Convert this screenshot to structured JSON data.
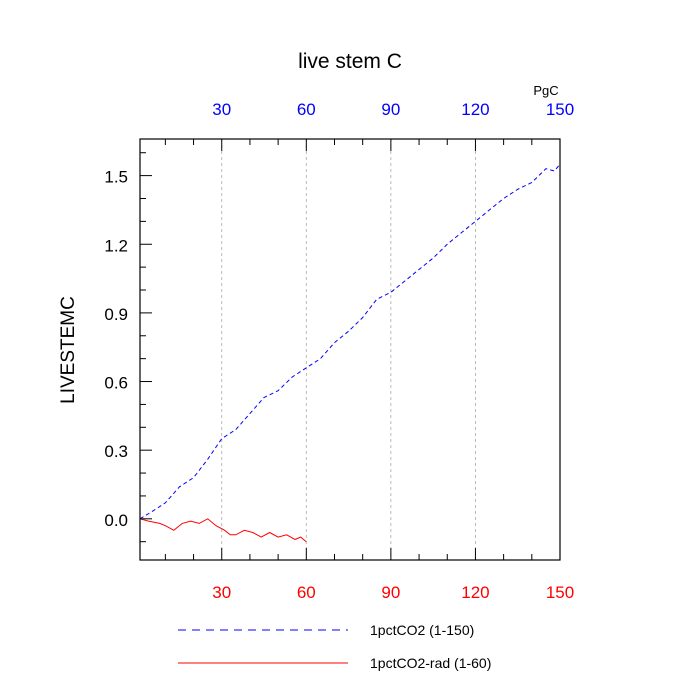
{
  "chart_data": {
    "type": "line",
    "title": "live stem C",
    "ylabel": "LIVESTEMC",
    "units_label": "PgC",
    "xlim": [
      1,
      150
    ],
    "ylim": [
      -0.18,
      1.66
    ],
    "x_ticks_bottom": [
      30,
      60,
      90,
      120,
      150
    ],
    "x_ticks_top": [
      30,
      60,
      90,
      120,
      150
    ],
    "y_ticks": [
      0.0,
      0.3,
      0.6,
      0.9,
      1.2,
      1.5
    ],
    "y_tick_labels": [
      "0.0",
      "0.3",
      "0.6",
      "0.9",
      "1.2",
      "1.5"
    ],
    "x_tick_labels_bottom": [
      "30",
      "60",
      "90",
      "120",
      "150"
    ],
    "x_tick_labels_top": [
      "30",
      "60",
      "90",
      "120",
      "150"
    ],
    "grid": "vertical dashed at x ticks",
    "legend_placement": "bottom",
    "colors": {
      "series1": "#0000ff",
      "series2": "#ff0000",
      "top_ticks": "#0000ff",
      "bottom_ticks": "#ff0000",
      "grid": "#aaaaaa"
    },
    "series": [
      {
        "name": "1pctCO2 (1-150)",
        "style": "dashed",
        "x": [
          1,
          5,
          10,
          15,
          20,
          25,
          30,
          35,
          40,
          45,
          50,
          55,
          60,
          65,
          70,
          75,
          80,
          85,
          90,
          95,
          100,
          105,
          110,
          115,
          120,
          125,
          130,
          135,
          140,
          145,
          148,
          150
        ],
        "y": [
          0.0,
          0.03,
          0.07,
          0.14,
          0.18,
          0.26,
          0.35,
          0.39,
          0.46,
          0.53,
          0.56,
          0.62,
          0.66,
          0.7,
          0.77,
          0.82,
          0.88,
          0.96,
          0.99,
          1.04,
          1.09,
          1.14,
          1.2,
          1.25,
          1.3,
          1.35,
          1.4,
          1.44,
          1.47,
          1.53,
          1.52,
          1.55
        ]
      },
      {
        "name": "1pctCO2-rad (1-60)",
        "style": "solid",
        "x": [
          1,
          4,
          8,
          10,
          13,
          16,
          19,
          22,
          25,
          28,
          31,
          33,
          35,
          38,
          41,
          44,
          47,
          50,
          53,
          56,
          58,
          60
        ],
        "y": [
          0.0,
          -0.01,
          -0.02,
          -0.03,
          -0.05,
          -0.02,
          -0.01,
          -0.02,
          0.0,
          -0.03,
          -0.05,
          -0.07,
          -0.07,
          -0.05,
          -0.06,
          -0.08,
          -0.06,
          -0.08,
          -0.07,
          -0.09,
          -0.08,
          -0.1
        ]
      }
    ]
  }
}
